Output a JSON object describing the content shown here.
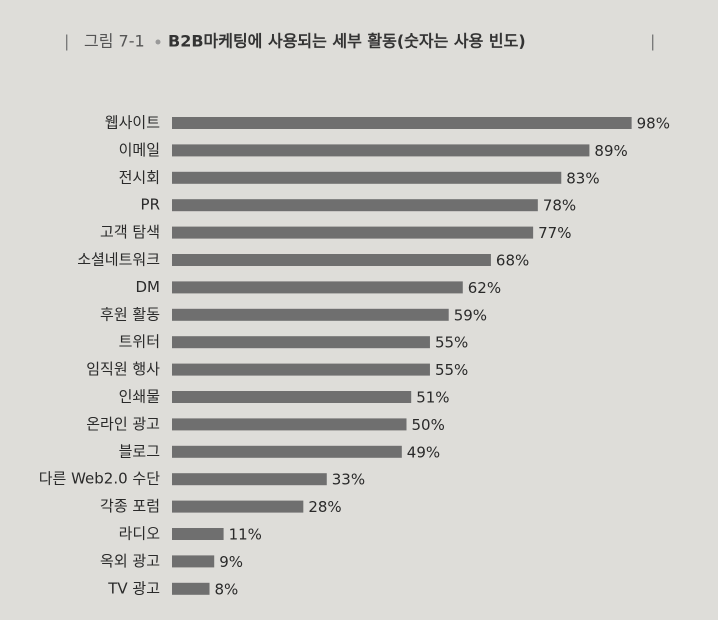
{
  "chart_data": {
    "type": "bar",
    "orientation": "horizontal",
    "figure_label": "그림 7-1",
    "title": "B2B마케팅에  사용되는 세부 활동(숫자는 사용 빈도)",
    "categories": [
      "웹사이트",
      "이메일",
      "전시회",
      "PR",
      "고객 탐색",
      "소셜네트워크",
      "DM",
      "후원 활동",
      "트위터",
      "임직원 행사",
      "인쇄물",
      "온라인 광고",
      "블로그",
      "다른 Web2.0 수단",
      "각종 포럼",
      "라디오",
      "옥외 광고",
      "TV 광고"
    ],
    "values": [
      98,
      89,
      83,
      78,
      77,
      68,
      62,
      59,
      55,
      55,
      51,
      50,
      49,
      33,
      28,
      11,
      9,
      8
    ],
    "value_labels": [
      "98%",
      "89%",
      "83%",
      "78%",
      "77%",
      "68%",
      "62%",
      "59%",
      "55%",
      "55%",
      "51%",
      "50%",
      "49%",
      "33%",
      "28%",
      "11%",
      "9%",
      "8%"
    ],
    "color": "#6f6f6f"
  }
}
